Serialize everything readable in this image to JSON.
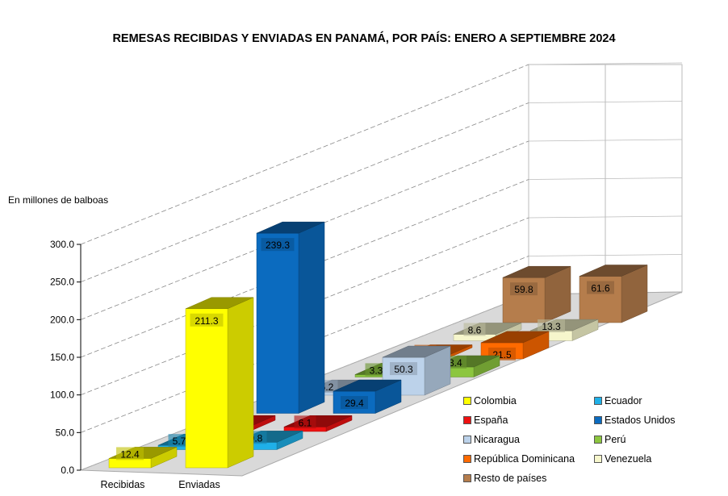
{
  "chart_data": {
    "type": "bar",
    "title": "REMESAS RECIBIDAS Y ENVIADAS EN PANAMÁ, POR PAÍS: ENERO A SEPTIEMBRE 2024",
    "ylabel": "En millones de balboas",
    "xlabel": "",
    "categories": [
      "Recibidas",
      "Enviadas"
    ],
    "ylim": [
      0,
      300
    ],
    "yticks": [
      "0.0",
      "50.0",
      "100.0",
      "150.0",
      "200.0",
      "250.0",
      "300.0"
    ],
    "grid": true,
    "legend_position": "bottom-right",
    "series": [
      {
        "name": "Colombia",
        "color": "#ffff00",
        "values": [
          12.4,
          211.3
        ],
        "labels": [
          "12.4",
          "211.3"
        ]
      },
      {
        "name": "Ecuador",
        "color": "#1fb0e8",
        "values": [
          5.7,
          9.8
        ],
        "labels": [
          "5.7",
          "9.8"
        ]
      },
      {
        "name": "España",
        "color": "#ee1111",
        "values": [
          6.2,
          6.1
        ],
        "labels": [
          "6.2",
          "6.1"
        ]
      },
      {
        "name": "Estados Unidos",
        "color": "#0b6bbf",
        "values": [
          239.3,
          29.4
        ],
        "labels": [
          "239.3",
          "29.4"
        ]
      },
      {
        "name": "Nicaragua",
        "color": "#bcd2ea",
        "values": [
          5.2,
          50.3
        ],
        "labels": [
          "5.2",
          "50.3"
        ]
      },
      {
        "name": "Perú",
        "color": "#8cc63f",
        "values": [
          3.3,
          13.4
        ],
        "labels": [
          "3.3",
          "13.4"
        ]
      },
      {
        "name": "República Dominicana",
        "color": "#ff6a00",
        "values": [
          3.7,
          21.5
        ],
        "labels": [
          "3.7",
          "21.5"
        ]
      },
      {
        "name": "Venezuela",
        "color": "#f6f6cc",
        "values": [
          8.6,
          13.3
        ],
        "labels": [
          "8.6",
          "13.3"
        ]
      },
      {
        "name": "Resto de países",
        "color": "#b57d4c",
        "values": [
          59.8,
          61.6
        ],
        "labels": [
          "59.8",
          "61.6"
        ]
      }
    ]
  }
}
